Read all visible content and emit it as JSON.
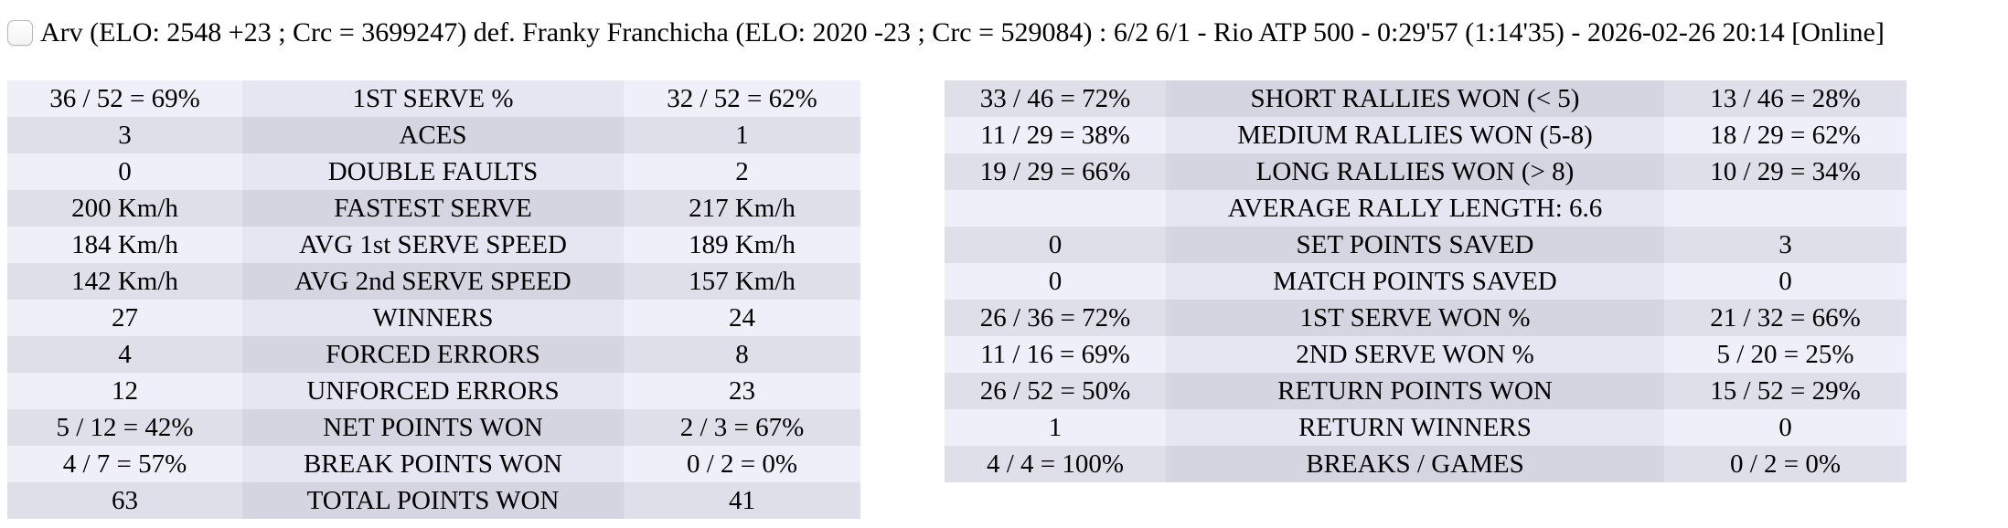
{
  "header": {
    "checkbox_checked": false,
    "title": "Arv (ELO: 2548 +23 ; Crc = 3699247) def. Franky Franchicha (ELO: 2020 -23 ; Crc = 529084) : 6/2 6/1 - Rio ATP 500 - 0:29'57 (1:14'35) - 2026-02-26 20:14 [Online]"
  },
  "colors": {
    "row_light_value": "#EFEFF9",
    "row_light_label": "#E6E6F2",
    "row_dark_value": "#DFDFEA",
    "row_dark_label": "#D5D5E1",
    "text": "#000000",
    "background": "#FFFFFF"
  },
  "serve_stats": {
    "first_row_shade": "light",
    "rows": [
      {
        "p1": "36 / 52 = 69%",
        "label": "1ST SERVE %",
        "p2": "32 / 52 = 62%"
      },
      {
        "p1": "3",
        "label": "ACES",
        "p2": "1"
      },
      {
        "p1": "0",
        "label": "DOUBLE FAULTS",
        "p2": "2"
      },
      {
        "p1": "200 Km/h",
        "label": "FASTEST SERVE",
        "p2": "217 Km/h"
      },
      {
        "p1": "184 Km/h",
        "label": "AVG 1st SERVE SPEED",
        "p2": "189 Km/h"
      },
      {
        "p1": "142 Km/h",
        "label": "AVG 2nd SERVE SPEED",
        "p2": "157 Km/h"
      },
      {
        "p1": "27",
        "label": "WINNERS",
        "p2": "24"
      },
      {
        "p1": "4",
        "label": "FORCED ERRORS",
        "p2": "8"
      },
      {
        "p1": "12",
        "label": "UNFORCED ERRORS",
        "p2": "23"
      },
      {
        "p1": "5 / 12 = 42%",
        "label": "NET POINTS WON",
        "p2": "2 / 3 = 67%"
      },
      {
        "p1": "4 / 7 = 57%",
        "label": "BREAK POINTS WON",
        "p2": "0 / 2 = 0%"
      },
      {
        "p1": "63",
        "label": "TOTAL POINTS WON",
        "p2": "41"
      }
    ]
  },
  "rally_stats": {
    "first_row_shade": "dark",
    "rows": [
      {
        "p1": "33 / 46 = 72%",
        "label": "SHORT RALLIES WON (< 5)",
        "p2": "13 / 46 = 28%"
      },
      {
        "p1": "11 / 29 = 38%",
        "label": "MEDIUM RALLIES WON (5-8)",
        "p2": "18 / 29 = 62%"
      },
      {
        "p1": "19 / 29 = 66%",
        "label": "LONG RALLIES WON (> 8)",
        "p2": "10 / 29 = 34%"
      },
      {
        "p1": "",
        "label": "AVERAGE RALLY LENGTH: 6.6",
        "p2": ""
      },
      {
        "p1": "0",
        "label": "SET POINTS SAVED",
        "p2": "3"
      },
      {
        "p1": "0",
        "label": "MATCH POINTS SAVED",
        "p2": "0"
      },
      {
        "p1": "26 / 36 = 72%",
        "label": "1ST SERVE WON %",
        "p2": "21 / 32 = 66%"
      },
      {
        "p1": "11 / 16 = 69%",
        "label": "2ND SERVE WON %",
        "p2": "5 / 20 = 25%"
      },
      {
        "p1": "26 / 52 = 50%",
        "label": "RETURN POINTS WON",
        "p2": "15 / 52 = 29%"
      },
      {
        "p1": "1",
        "label": "RETURN WINNERS",
        "p2": "0"
      },
      {
        "p1": "4 / 4 = 100%",
        "label": "BREAKS / GAMES",
        "p2": "0 / 2 = 0%"
      }
    ]
  }
}
